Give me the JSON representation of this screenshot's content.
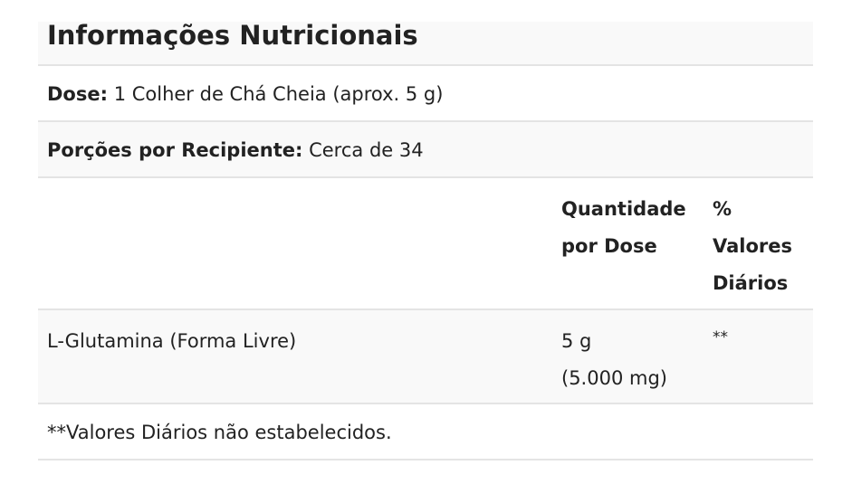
{
  "title": "Informações Nutricionais",
  "dose": {
    "label": "Dose:",
    "value": "1 Colher de Chá Cheia (aprox. 5 g)"
  },
  "servings": {
    "label": "Porções por Recipiente:",
    "value": "Cerca de 34"
  },
  "header": {
    "amount_line1": "Quantidade",
    "amount_line2": "por Dose",
    "dv_line1": "%",
    "dv_line2": "Valores",
    "dv_line3": "Diários"
  },
  "rows": [
    {
      "name": "L-Glutamina (Forma Livre)",
      "amount_line1": "5 g",
      "amount_line2": "(5.000 mg)",
      "dv": "**"
    }
  ],
  "footnote": "**Valores Diários não estabelecidos."
}
